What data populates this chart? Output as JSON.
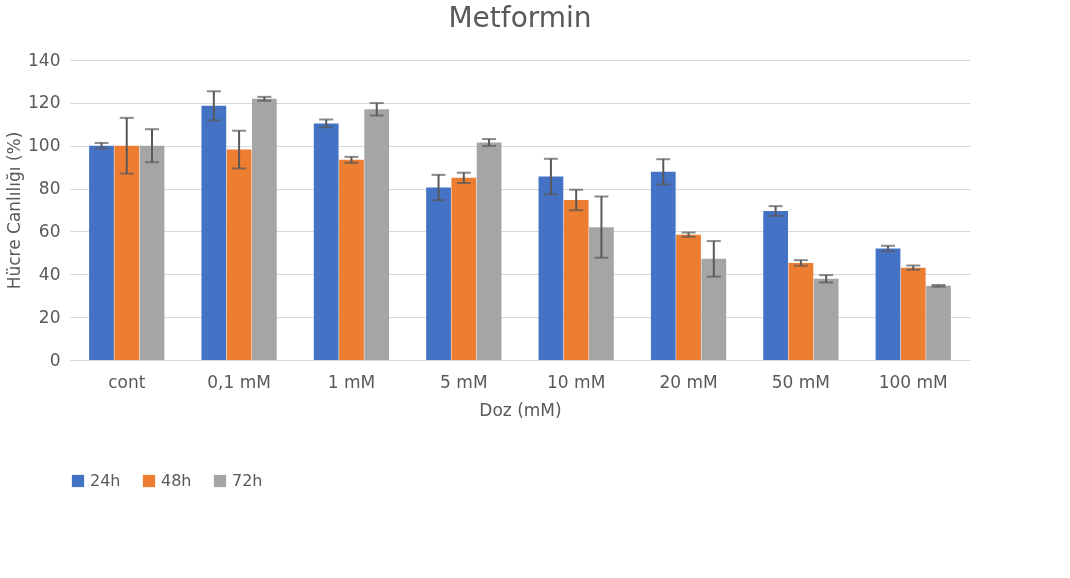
{
  "chart_data": {
    "type": "bar",
    "title": "Metformin",
    "xlabel": "Doz (mM)",
    "ylabel": "Hücre Canlılığı (%)",
    "categories": [
      "cont",
      "0,1 mM",
      "1 mM",
      "5 mM",
      "10 mM",
      "20 mM",
      "50 mM",
      "100 mM"
    ],
    "series": [
      {
        "name": "24h",
        "color": "#4472c4",
        "values": [
          100,
          118.6,
          110.4,
          80.5,
          85.6,
          87.8,
          69.5,
          52
        ],
        "errors": [
          1.3,
          6.8,
          1.8,
          5.9,
          8.3,
          5.9,
          2.3,
          1.3
        ]
      },
      {
        "name": "48h",
        "color": "#ed7d31",
        "values": [
          100,
          98.2,
          93.4,
          85,
          74.7,
          58.5,
          45.3,
          43.1
        ],
        "errors": [
          13,
          8.8,
          1.4,
          2.4,
          4.8,
          1,
          1.3,
          1
        ]
      },
      {
        "name": "72h",
        "color": "#a5a5a5",
        "values": [
          100,
          121.9,
          117,
          101.5,
          62,
          47.2,
          37.9,
          34.6
        ],
        "errors": [
          7.7,
          0.9,
          2.9,
          1.6,
          14.3,
          8.3,
          1.7,
          0.4
        ]
      }
    ],
    "ylim": [
      0,
      140
    ],
    "yticks": [
      0,
      20,
      40,
      60,
      80,
      100,
      120,
      140
    ],
    "grid": "y",
    "legend": "bottom"
  }
}
